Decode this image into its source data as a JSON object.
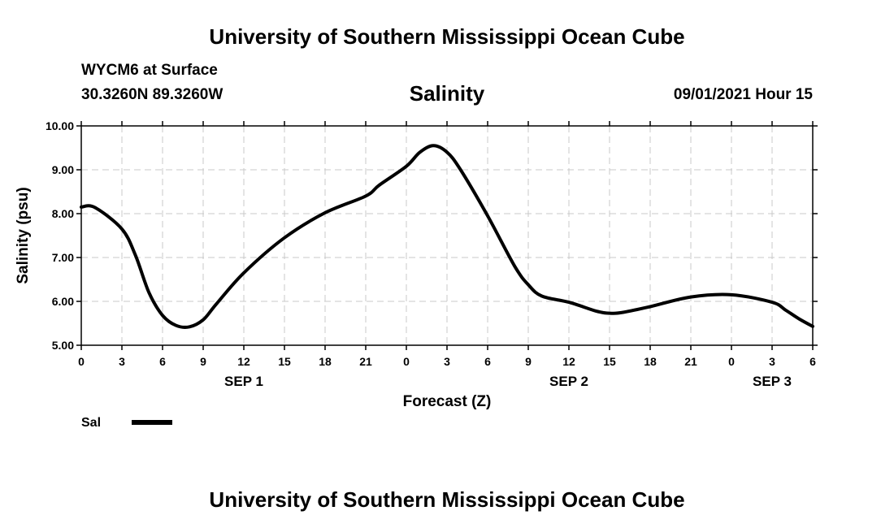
{
  "header": {
    "top_title": "University of Southern Mississippi Ocean Cube",
    "station": "WYCM6 at Surface",
    "coordinates": "30.3260N  89.3260W",
    "run_time": "09/01/2021 Hour 15"
  },
  "footer": {
    "bottom_title": "University of Southern Mississippi Ocean Cube"
  },
  "chart_data": {
    "type": "line",
    "title": "Salinity",
    "xlabel": "Forecast (Z)",
    "ylabel": "Salinity (psu)",
    "ylim": [
      5,
      10
    ],
    "y_ticks": [
      "5.00",
      "6.00",
      "7.00",
      "8.00",
      "9.00",
      "10.00"
    ],
    "x_range_hours": [
      0,
      54
    ],
    "x_tick_labels": [
      "0",
      "3",
      "6",
      "9",
      "12",
      "15",
      "18",
      "21",
      "0",
      "3",
      "6",
      "9",
      "12",
      "15",
      "18",
      "21",
      "0",
      "3",
      "6"
    ],
    "date_labels": [
      {
        "label": "SEP 1",
        "hour": 12
      },
      {
        "label": "SEP 2",
        "hour": 36
      },
      {
        "label": "SEP 3",
        "hour": 51
      }
    ],
    "grid": true,
    "series": [
      {
        "name": "Sal",
        "color": "#000000",
        "x_hours": [
          0,
          1,
          3,
          4,
          5,
          6,
          7,
          8,
          9,
          10,
          12,
          15,
          18,
          21,
          22,
          24,
          25,
          26,
          27,
          28,
          30,
          32,
          33,
          34,
          36,
          38,
          39,
          40,
          42,
          45,
          48,
          51,
          52,
          53,
          54
        ],
        "values": [
          8.15,
          8.14,
          7.65,
          7.05,
          6.2,
          5.68,
          5.45,
          5.42,
          5.58,
          5.95,
          6.65,
          7.45,
          8.02,
          8.4,
          8.65,
          9.08,
          9.4,
          9.55,
          9.4,
          9.0,
          7.95,
          6.8,
          6.38,
          6.12,
          5.98,
          5.78,
          5.73,
          5.75,
          5.88,
          6.1,
          6.15,
          5.98,
          5.8,
          5.6,
          5.43
        ]
      }
    ],
    "legend": {
      "position": "bottom-left",
      "entries": [
        "Sal"
      ]
    }
  }
}
